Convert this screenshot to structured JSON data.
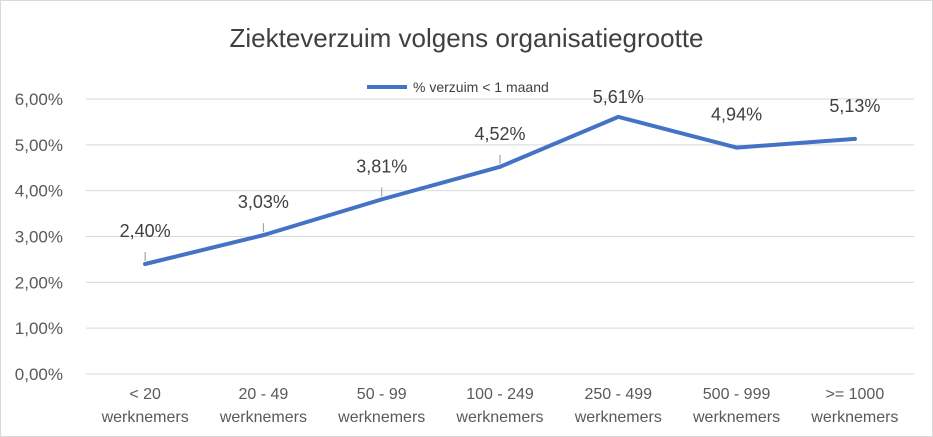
{
  "chart_data": {
    "type": "line",
    "title": "Ziekteverzuim volgens organisatiegrootte",
    "categories": [
      [
        "< 20",
        "werknemers"
      ],
      [
        "20 - 49",
        "werknemers"
      ],
      [
        "50 - 99",
        "werknemers"
      ],
      [
        "100 - 249",
        "werknemers"
      ],
      [
        "250 - 499",
        "werknemers"
      ],
      [
        "500 - 999",
        "werknemers"
      ],
      [
        ">= 1000",
        "werknemers"
      ]
    ],
    "series": [
      {
        "name": "% verzuim < 1 maand",
        "values": [
          2.4,
          3.03,
          3.81,
          4.52,
          5.61,
          4.94,
          5.13
        ],
        "labels": [
          "2,40%",
          "3,03%",
          "3,81%",
          "4,52%",
          "5,61%",
          "4,94%",
          "5,13%"
        ],
        "color": "#4472c4"
      }
    ],
    "ylim": [
      0,
      6
    ],
    "yticks": [
      "0,00%",
      "1,00%",
      "2,00%",
      "3,00%",
      "4,00%",
      "5,00%",
      "6,00%"
    ],
    "grid": true,
    "legend_position": "top"
  }
}
